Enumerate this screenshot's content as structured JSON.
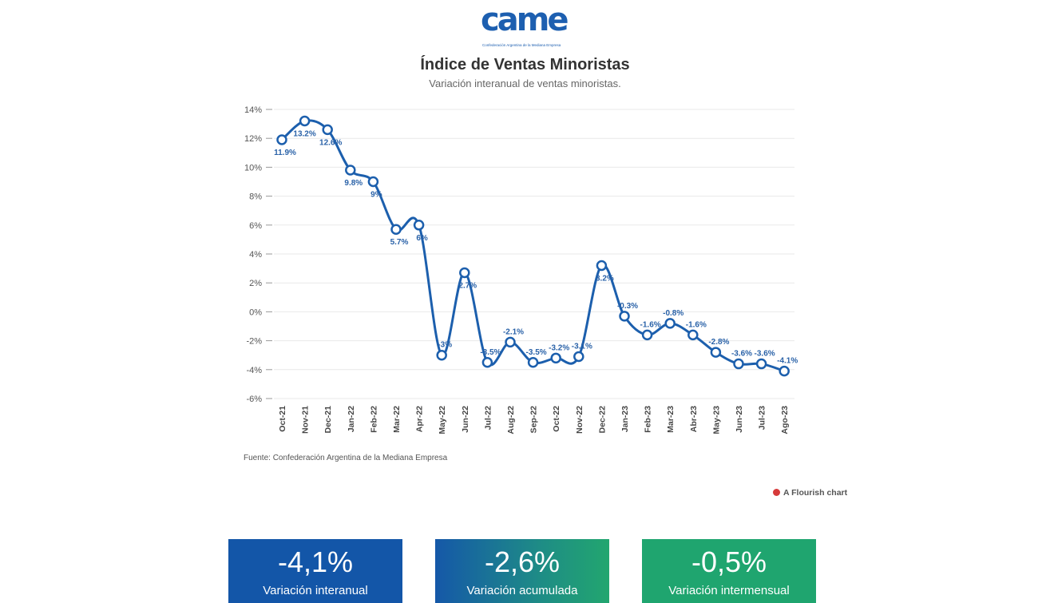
{
  "logo": {
    "text": "came",
    "subtext": "Confederación Argentina de la Mediana Empresa"
  },
  "chart_data": {
    "type": "line",
    "title": "Índice de Ventas Minoristas",
    "subtitle": "Variación interanual de ventas minoristas.",
    "categories": [
      "Oct-21",
      "Nov-21",
      "Dec-21",
      "Jan-22",
      "Feb-22",
      "Mar-22",
      "Apr-22",
      "May-22",
      "Jun-22",
      "Jul-22",
      "Aug-22",
      "Sep-22",
      "Oct-22",
      "Nov-22",
      "Dec-22",
      "Jan-23",
      "Feb-23",
      "Mar-23",
      "Abr-23",
      "May-23",
      "Jun-23",
      "Jul-23",
      "Ago-23"
    ],
    "values": [
      11.9,
      13.2,
      12.6,
      9.8,
      9,
      5.7,
      6,
      -3,
      2.7,
      -3.5,
      -2.1,
      -3.5,
      -3.2,
      -3.1,
      3.2,
      -0.3,
      -1.6,
      -0.8,
      -1.6,
      -2.8,
      -3.6,
      -3.6,
      -4.1
    ],
    "data_labels": [
      "11.9%",
      "13.2%",
      "12.6%",
      "9.8%",
      "9%",
      "5.7%",
      "6%",
      "-3%",
      "2.7%",
      "-3.5%",
      "-2.1%",
      "-3.5%",
      "-3.2%",
      "-3.1%",
      "3.2%",
      "-0.3%",
      "-1.6%",
      "-0.8%",
      "-1.6%",
      "-2.8%",
      "-3.6%",
      "-3.6%",
      "-4.1%"
    ],
    "label_below": [
      true,
      true,
      true,
      true,
      true,
      true,
      true,
      false,
      true,
      false,
      false,
      false,
      false,
      false,
      true,
      false,
      false,
      false,
      false,
      false,
      false,
      false,
      false
    ],
    "y_ticks": [
      "14%",
      "12%",
      "10%",
      "8%",
      "6%",
      "4%",
      "2%",
      "0%",
      "-2%",
      "-4%",
      "-6%"
    ],
    "y_tick_values": [
      14,
      12,
      10,
      8,
      6,
      4,
      2,
      0,
      -2,
      -4,
      -6
    ],
    "ylim": [
      -6,
      14
    ],
    "grid": true,
    "line_color": "#1c5fad"
  },
  "source": "Fuente: Confederación Argentina de la Mediana Empresa",
  "flourish": "A Flourish chart",
  "cards": [
    {
      "value": "-4,1%",
      "label": "Variación interanual"
    },
    {
      "value": "-2,6%",
      "label": "Variación acumulada"
    },
    {
      "value": "-0,5%",
      "label": "Variación intermensual"
    }
  ]
}
